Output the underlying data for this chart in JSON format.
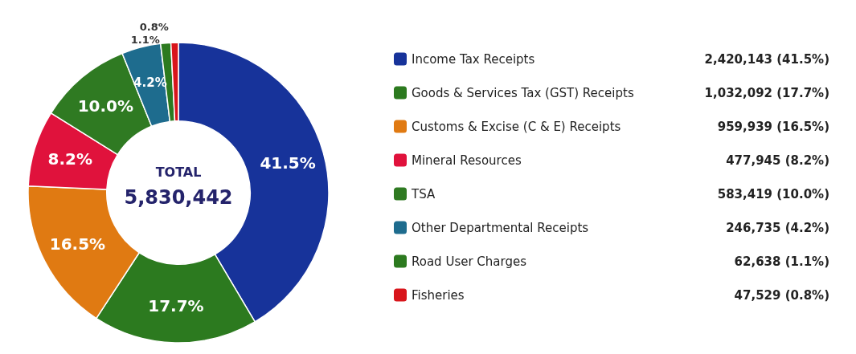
{
  "chart_data": {
    "type": "donut",
    "categories": [
      "Income Tax Receipts",
      "Goods & Services Tax (GST) Receipts",
      "Customs & Excise (C & E) Receipts",
      "Mineral Resources",
      "TSA",
      "Other Departmental Receipts",
      "Road User Charges",
      "Fisheries"
    ],
    "values": [
      41.5,
      17.7,
      16.5,
      8.2,
      10.0,
      4.2,
      1.1,
      0.8
    ],
    "colors": [
      "#17339a",
      "#2c7a1f",
      "#e07a12",
      "#e0123c",
      "#2f7a22",
      "#1e6c8e",
      "#2c7a1f",
      "#d8151b"
    ],
    "value_labels": [
      "41.5%",
      "17.7%",
      "16.5%",
      "8.2%",
      "10.0%",
      "4.2%",
      "1.1%",
      "0.8%"
    ],
    "annotations": [
      "TOTAL",
      "5,830,442",
      {
        "text": "2,420,143 (41.5%)",
        "x": "Income Tax Receipts"
      },
      {
        "text": "1,032,092 (17.7%)",
        "x": "Goods & Services Tax (GST) Receipts"
      },
      {
        "text": "959,939 (16.5%)",
        "x": "Customs & Excise (C & E) Receipts"
      },
      {
        "text": "477,945 (8.2%)",
        "x": "Mineral Resources"
      },
      {
        "text": "583,419 (10.0%)",
        "x": "TSA"
      },
      {
        "text": "246,735 (4.2%)",
        "x": "Other Departmental Receipts"
      },
      {
        "text": "62,638 (1.1%)",
        "x": "Road User Charges"
      },
      {
        "text": "47,529 (0.8%)",
        "x": "Fisheries"
      }
    ],
    "legend": "right"
  }
}
